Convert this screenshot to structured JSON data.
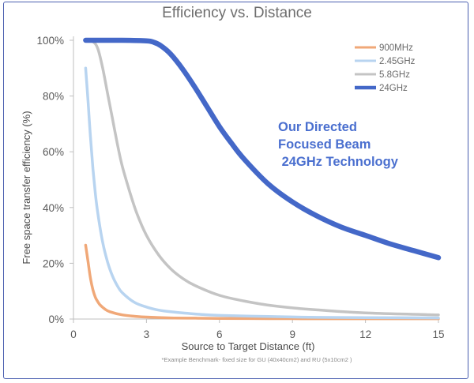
{
  "chart_data": {
    "type": "line",
    "title": "Efficiency vs. Distance",
    "xlabel": "Source to Target Distance (ft)",
    "ylabel": "Free space transfer efficiency (%)",
    "xlim": [
      0,
      15
    ],
    "ylim": [
      0,
      100
    ],
    "xticks": [
      "0",
      "3",
      "6",
      "9",
      "12",
      "15"
    ],
    "yticks": [
      "0%",
      "20%",
      "40%",
      "60%",
      "80%",
      "100%"
    ],
    "legend_position": "top-right",
    "footnote": "*Example Benchmark- fixed size for GU (40x40cm2) and RU (5x10cm2 )",
    "annotation": [
      "Our Directed",
      "Focused Beam",
      " 24GHz Technology"
    ],
    "series": [
      {
        "name": "900MHz",
        "color": "#f0a878",
        "x": [
          0.5,
          0.6,
          0.7,
          0.8,
          0.9,
          1.0,
          1.1,
          1.3,
          1.5,
          2.0,
          2.5,
          3,
          4,
          5,
          6,
          8,
          10,
          12,
          15
        ],
        "y": [
          26.5,
          20.5,
          14.5,
          10.5,
          7.8,
          6.2,
          5.0,
          3.5,
          2.6,
          1.5,
          1.0,
          0.7,
          0.4,
          0.3,
          0.2,
          0.15,
          0.1,
          0.1,
          0.1
        ]
      },
      {
        "name": "2.45GHz",
        "color": "#b8d4f0",
        "x": [
          0.5,
          0.6,
          0.7,
          0.8,
          0.9,
          1.0,
          1.2,
          1.4,
          1.6,
          1.8,
          2.0,
          2.5,
          3,
          3.5,
          4,
          5,
          6,
          8,
          10,
          12,
          15
        ],
        "y": [
          90,
          78,
          65,
          54,
          45,
          38,
          27.5,
          20.5,
          15.5,
          12.0,
          9.5,
          6.0,
          4.3,
          3.2,
          2.6,
          1.8,
          1.3,
          0.9,
          0.6,
          0.5,
          0.4
        ]
      },
      {
        "name": "5.8GHz",
        "color": "#c4c4c4",
        "x": [
          0.5,
          0.8,
          1.0,
          1.2,
          1.4,
          1.6,
          1.8,
          2.0,
          2.3,
          2.6,
          3.0,
          3.5,
          4.0,
          4.5,
          5.0,
          6.0,
          7.0,
          8.0,
          9.0,
          10,
          12,
          15
        ],
        "y": [
          100,
          99.5,
          97,
          90,
          81,
          72,
          63,
          55,
          46,
          38,
          30,
          23,
          18,
          14.5,
          12,
          8.5,
          6.5,
          5.0,
          4.0,
          3.3,
          2.2,
          1.5
        ]
      },
      {
        "name": "24GHz",
        "color": "#4468c8",
        "x": [
          0.5,
          1,
          2,
          3,
          3.3,
          3.6,
          4.0,
          4.5,
          5.0,
          5.5,
          6.0,
          6.5,
          7.0,
          8.0,
          9.0,
          10,
          11,
          12,
          13,
          14,
          15
        ],
        "y": [
          100,
          100,
          100,
          99.8,
          99.3,
          98.0,
          95.0,
          89.5,
          83,
          76,
          69,
          63,
          57.5,
          48.5,
          42,
          37,
          33,
          30,
          27,
          24.5,
          22
        ]
      }
    ]
  }
}
